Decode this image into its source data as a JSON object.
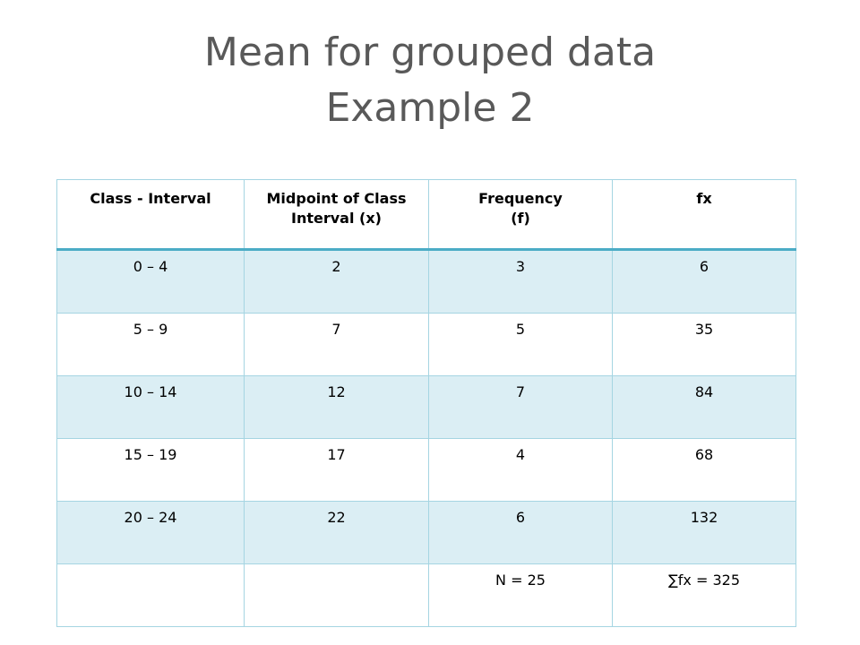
{
  "title": [
    "Mean for grouped data",
    "Example 2"
  ],
  "table": {
    "header": [
      "Class  -  Interval",
      "Midpoint  of  Class\nInterval (x)",
      "Frequency\n(f)",
      "fx"
    ],
    "rows": [
      [
        "0 – 4",
        "2",
        "3",
        "6"
      ],
      [
        "5 – 9",
        "7",
        "5",
        "35"
      ],
      [
        "10 – 14",
        "12",
        "7",
        "84"
      ],
      [
        "15 – 19",
        "17",
        "4",
        "68"
      ],
      [
        "20 – 24",
        "22",
        "6",
        "132"
      ]
    ],
    "totals": {
      "n": "N = 25",
      "sum": "∑fx = 325"
    }
  }
}
